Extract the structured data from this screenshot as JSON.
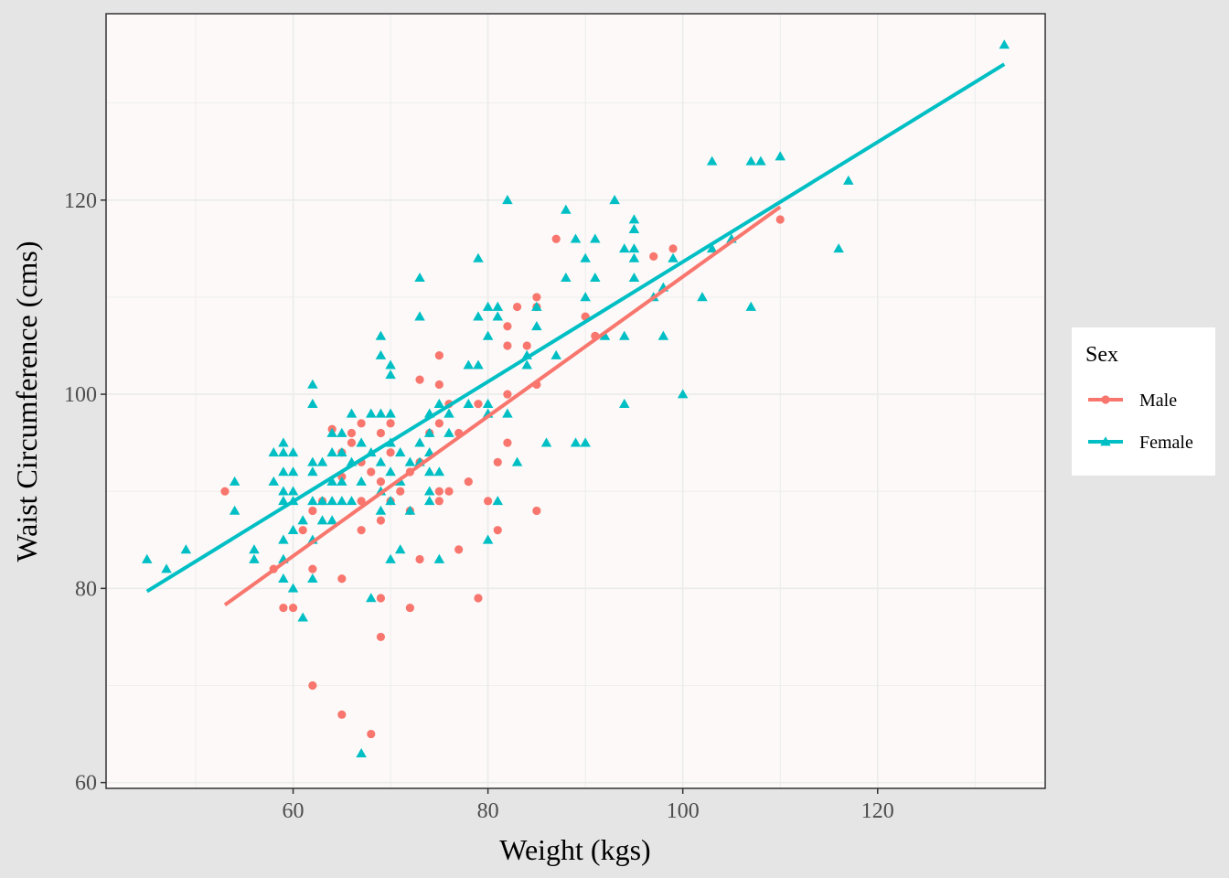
{
  "chart_data": {
    "type": "scatter",
    "xlabel": "Weight (kgs)",
    "ylabel": "Waist Circumference (cms)",
    "xlim": [
      40.8,
      137.2
    ],
    "ylim": [
      59.4,
      139.2
    ],
    "x_ticks": [
      60,
      80,
      100,
      120
    ],
    "y_ticks": [
      60,
      80,
      100,
      120
    ],
    "grid": true,
    "legend": {
      "title": "Sex",
      "placement": "right"
    },
    "colors": {
      "Male": "#f8766d",
      "Female": "#00bfc4",
      "panel": "#fcf9f8",
      "grid": "#ebebeb"
    },
    "series": [
      {
        "name": "Male",
        "marker": "circle",
        "color": "#f8766d",
        "fit_line": [
          [
            53,
            78.3
          ],
          [
            110,
            119.3
          ]
        ],
        "points": [
          [
            53,
            90
          ],
          [
            58,
            82
          ],
          [
            59,
            78
          ],
          [
            60,
            78
          ],
          [
            61,
            86
          ],
          [
            62,
            88
          ],
          [
            62,
            82
          ],
          [
            62,
            70
          ],
          [
            63,
            89
          ],
          [
            64,
            96.4
          ],
          [
            65,
            94
          ],
          [
            65,
            91.5
          ],
          [
            65,
            81
          ],
          [
            65,
            67
          ],
          [
            66,
            96
          ],
          [
            66,
            95
          ],
          [
            67,
            97
          ],
          [
            67,
            93
          ],
          [
            67,
            89
          ],
          [
            67,
            86
          ],
          [
            68,
            92
          ],
          [
            68,
            65
          ],
          [
            69,
            96
          ],
          [
            69,
            91
          ],
          [
            69,
            87
          ],
          [
            69,
            79
          ],
          [
            69,
            75
          ],
          [
            70,
            97
          ],
          [
            70,
            94
          ],
          [
            70,
            89
          ],
          [
            71,
            90
          ],
          [
            72,
            92
          ],
          [
            72,
            88
          ],
          [
            72,
            78
          ],
          [
            73,
            101.5
          ],
          [
            73,
            93
          ],
          [
            73,
            83
          ],
          [
            74,
            96
          ],
          [
            75,
            104
          ],
          [
            75,
            101
          ],
          [
            75,
            97
          ],
          [
            75,
            90
          ],
          [
            75,
            89
          ],
          [
            76,
            99
          ],
          [
            76,
            90
          ],
          [
            77,
            96
          ],
          [
            77,
            84
          ],
          [
            78,
            91
          ],
          [
            79,
            99
          ],
          [
            79,
            79
          ],
          [
            80,
            89
          ],
          [
            81,
            93
          ],
          [
            81,
            86
          ],
          [
            82,
            107
          ],
          [
            82,
            105
          ],
          [
            82,
            100
          ],
          [
            82,
            95
          ],
          [
            83,
            109
          ],
          [
            84,
            105
          ],
          [
            85,
            110
          ],
          [
            85,
            109
          ],
          [
            85,
            101
          ],
          [
            85,
            88
          ],
          [
            87,
            116
          ],
          [
            90,
            108
          ],
          [
            91,
            106
          ],
          [
            97,
            114.2
          ],
          [
            99,
            115
          ],
          [
            110,
            118
          ]
        ]
      },
      {
        "name": "Female",
        "marker": "triangle",
        "color": "#00bfc4",
        "fit_line": [
          [
            45,
            79.7
          ],
          [
            133,
            134
          ]
        ],
        "points": [
          [
            45,
            83
          ],
          [
            47,
            82
          ],
          [
            49,
            84
          ],
          [
            54,
            91
          ],
          [
            54,
            88
          ],
          [
            56,
            84
          ],
          [
            56,
            83
          ],
          [
            58,
            94
          ],
          [
            58,
            91
          ],
          [
            59,
            95
          ],
          [
            59,
            94
          ],
          [
            59,
            92
          ],
          [
            59,
            90
          ],
          [
            59,
            89
          ],
          [
            59,
            85
          ],
          [
            59,
            83
          ],
          [
            59,
            81
          ],
          [
            60,
            94
          ],
          [
            60,
            92
          ],
          [
            60,
            90
          ],
          [
            60,
            89
          ],
          [
            60,
            86
          ],
          [
            60,
            80
          ],
          [
            61,
            87
          ],
          [
            61,
            77
          ],
          [
            62,
            101
          ],
          [
            62,
            99
          ],
          [
            62,
            93
          ],
          [
            62,
            92
          ],
          [
            62,
            89
          ],
          [
            62,
            85
          ],
          [
            62,
            81
          ],
          [
            63,
            93
          ],
          [
            63,
            89
          ],
          [
            63,
            87
          ],
          [
            64,
            96
          ],
          [
            64,
            94
          ],
          [
            64,
            91
          ],
          [
            64,
            89
          ],
          [
            64,
            87
          ],
          [
            65,
            96
          ],
          [
            65,
            94
          ],
          [
            65,
            91
          ],
          [
            65,
            89
          ],
          [
            66,
            98
          ],
          [
            66,
            93
          ],
          [
            66,
            89
          ],
          [
            67,
            95
          ],
          [
            67,
            91
          ],
          [
            67,
            63
          ],
          [
            68,
            98
          ],
          [
            68,
            94
          ],
          [
            68,
            79
          ],
          [
            69,
            106
          ],
          [
            69,
            104
          ],
          [
            69,
            98
          ],
          [
            69,
            93
          ],
          [
            69,
            90
          ],
          [
            69,
            88
          ],
          [
            70,
            103
          ],
          [
            70,
            102
          ],
          [
            70,
            98
          ],
          [
            70,
            95
          ],
          [
            70,
            92
          ],
          [
            70,
            89
          ],
          [
            70,
            83
          ],
          [
            71,
            94
          ],
          [
            71,
            91
          ],
          [
            71,
            84
          ],
          [
            72,
            93
          ],
          [
            72,
            88
          ],
          [
            73,
            112
          ],
          [
            73,
            108
          ],
          [
            73,
            95
          ],
          [
            73,
            93
          ],
          [
            74,
            98
          ],
          [
            74,
            96
          ],
          [
            74,
            94
          ],
          [
            74,
            92
          ],
          [
            74,
            90
          ],
          [
            74,
            89
          ],
          [
            75,
            99
          ],
          [
            75,
            92
          ],
          [
            75,
            83
          ],
          [
            76,
            98
          ],
          [
            76,
            96
          ],
          [
            78,
            103
          ],
          [
            78,
            99
          ],
          [
            79,
            114
          ],
          [
            79,
            108
          ],
          [
            79,
            103
          ],
          [
            80,
            109
          ],
          [
            80,
            106
          ],
          [
            80,
            85
          ],
          [
            80,
            99
          ],
          [
            80,
            98
          ],
          [
            81,
            109
          ],
          [
            81,
            108
          ],
          [
            81,
            89
          ],
          [
            82,
            120
          ],
          [
            82,
            98
          ],
          [
            83,
            93
          ],
          [
            84,
            104
          ],
          [
            84,
            103
          ],
          [
            85,
            109
          ],
          [
            85,
            107
          ],
          [
            86,
            95
          ],
          [
            87,
            104
          ],
          [
            88,
            119
          ],
          [
            88,
            112
          ],
          [
            89,
            116
          ],
          [
            89,
            95
          ],
          [
            90,
            114
          ],
          [
            90,
            110
          ],
          [
            90,
            95
          ],
          [
            91,
            116
          ],
          [
            91,
            112
          ],
          [
            92,
            106
          ],
          [
            93,
            120
          ],
          [
            94,
            115
          ],
          [
            94,
            106
          ],
          [
            94,
            99
          ],
          [
            95,
            118
          ],
          [
            95,
            117
          ],
          [
            95,
            115
          ],
          [
            95,
            112
          ],
          [
            95,
            114
          ],
          [
            97,
            110
          ],
          [
            98,
            111
          ],
          [
            98,
            106
          ],
          [
            99,
            114
          ],
          [
            100,
            100
          ],
          [
            102,
            110
          ],
          [
            103,
            124
          ],
          [
            103,
            115
          ],
          [
            105,
            116
          ],
          [
            107,
            124
          ],
          [
            107,
            109
          ],
          [
            108,
            124
          ],
          [
            110,
            124.5
          ],
          [
            116,
            115
          ],
          [
            117,
            122
          ],
          [
            133,
            136
          ]
        ]
      }
    ]
  }
}
